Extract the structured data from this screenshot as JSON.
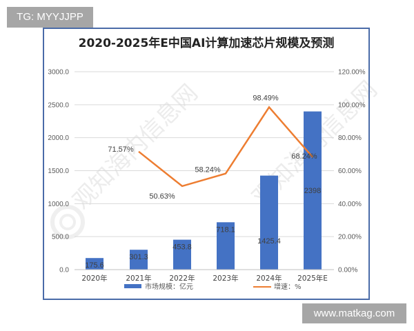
{
  "watermarks": {
    "top": "TG: MYYJJPP",
    "bottom": "www.matkag.com",
    "background": "观知海内信息网"
  },
  "colors": {
    "bar": "#4472c4",
    "line": "#ed7d31",
    "frame": "#4a6ba8",
    "grid": "#d9d9d9"
  },
  "chart_data": {
    "type": "bar+line",
    "title": "2020-2025年E中国AI计算加速芯片规模及预测",
    "categories": [
      "2020年",
      "2021年",
      "2022年",
      "2023年",
      "2024年",
      "2025年E"
    ],
    "series": [
      {
        "name": "市场规模：亿元",
        "type": "bar",
        "axis": "left",
        "values": [
          175.6,
          301.3,
          453.8,
          718.1,
          1425.4,
          2398
        ],
        "labels": [
          "175.6",
          "301.3",
          "453.8",
          "718.1",
          "1425.4",
          "2398"
        ]
      },
      {
        "name": "增速：%",
        "type": "line",
        "axis": "right",
        "values": [
          null,
          71.57,
          50.63,
          58.24,
          98.49,
          68.24
        ],
        "labels": [
          "",
          "71.57%",
          "50.63%",
          "58.24%",
          "98.49%",
          "68.24%"
        ]
      }
    ],
    "left_axis": {
      "ylim": [
        0,
        3000
      ],
      "ticks": [
        "0.0",
        "500.0",
        "1000.0",
        "1500.0",
        "2000.0",
        "2500.0",
        "3000.0"
      ]
    },
    "right_axis": {
      "ylim": [
        0,
        120
      ],
      "ticks": [
        "0.00%",
        "20.00%",
        "40.00%",
        "60.00%",
        "80.00%",
        "100.00%",
        "120.00%"
      ]
    },
    "grid": true,
    "legend_position": "bottom",
    "legend": [
      "市场规模：亿元",
      "增速：%"
    ]
  }
}
